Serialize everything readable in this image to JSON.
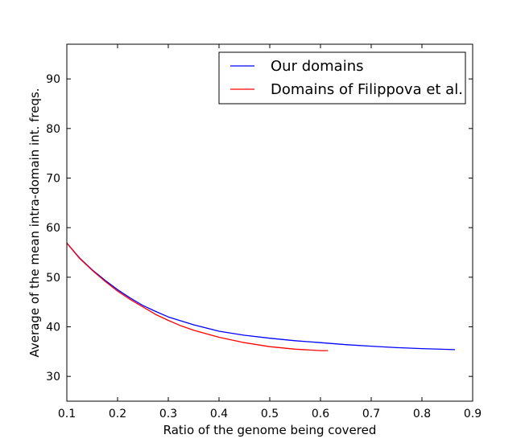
{
  "chart_data": {
    "type": "line",
    "title": "",
    "xlabel": "Ratio of the genome being covered",
    "ylabel": "Average of the mean intra-domain int. freqs.",
    "xlim": [
      0.1,
      0.9
    ],
    "ylim": [
      25,
      97
    ],
    "xticks": [
      "0.1",
      "0.2",
      "0.3",
      "0.4",
      "0.5",
      "0.6",
      "0.7",
      "0.8",
      "0.9"
    ],
    "yticks": [
      "30",
      "40",
      "50",
      "60",
      "70",
      "80",
      "90"
    ],
    "grid": false,
    "legend_position": "top-right",
    "series": [
      {
        "name": "Our domains",
        "color": "#0000ff",
        "x": [
          0.1,
          0.125,
          0.15,
          0.175,
          0.2,
          0.225,
          0.25,
          0.275,
          0.3,
          0.35,
          0.4,
          0.45,
          0.5,
          0.55,
          0.6,
          0.65,
          0.7,
          0.75,
          0.8,
          0.865
        ],
        "y": [
          56.9,
          53.9,
          51.5,
          49.4,
          47.5,
          45.8,
          44.3,
          43.1,
          42.0,
          40.4,
          39.1,
          38.3,
          37.7,
          37.2,
          36.8,
          36.4,
          36.1,
          35.8,
          35.6,
          35.4
        ]
      },
      {
        "name": "Domains of Filippova et al.",
        "color": "#ff0000",
        "x": [
          0.1,
          0.125,
          0.15,
          0.175,
          0.2,
          0.225,
          0.25,
          0.275,
          0.3,
          0.325,
          0.35,
          0.4,
          0.45,
          0.5,
          0.55,
          0.6,
          0.615
        ],
        "y": [
          56.9,
          53.8,
          51.4,
          49.2,
          47.2,
          45.5,
          44.0,
          42.5,
          41.3,
          40.2,
          39.3,
          37.9,
          36.8,
          36.0,
          35.5,
          35.2,
          35.2
        ]
      }
    ]
  }
}
